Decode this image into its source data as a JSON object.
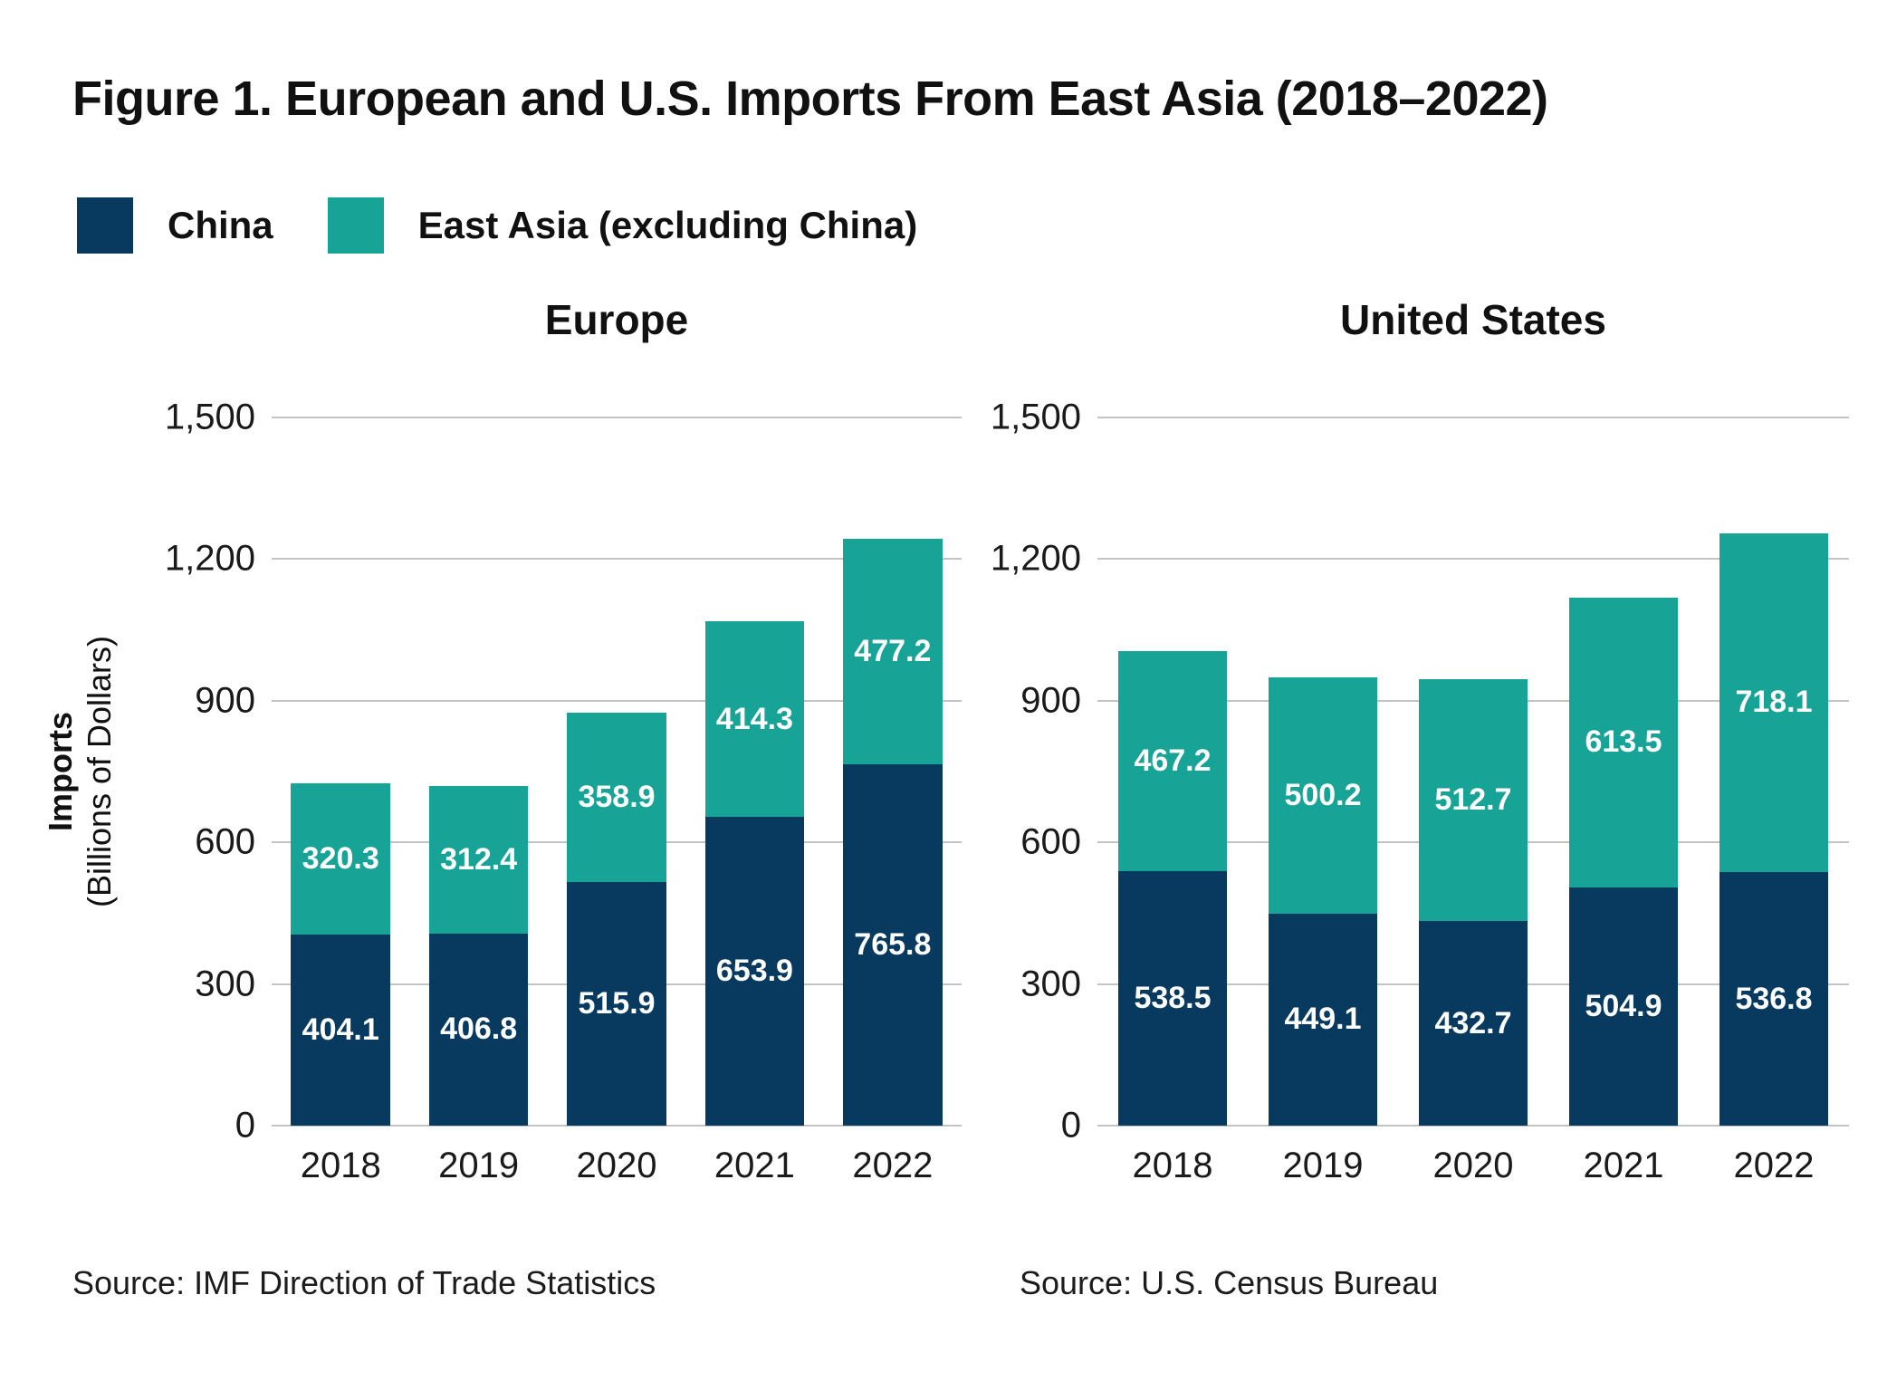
{
  "figure": {
    "title": "Figure 1. European and U.S. Imports From East Asia (2018–2022)"
  },
  "legend": {
    "items": [
      {
        "label": "China",
        "color": "#083a5f"
      },
      {
        "label": "East Asia (excluding China)",
        "color": "#17a396"
      }
    ]
  },
  "y_axis": {
    "title_bold": "Imports",
    "title_rest": "(Billions of Dollars)",
    "max": 1500,
    "ticks": [
      {
        "label": "1,500",
        "value": 1500
      },
      {
        "label": "1,200",
        "value": 1200
      },
      {
        "label": "900",
        "value": 900
      },
      {
        "label": "600",
        "value": 600
      },
      {
        "label": "300",
        "value": 300
      },
      {
        "label": "0",
        "value": 0
      }
    ]
  },
  "colors": {
    "china": "#083a5f",
    "east_asia_excl_china": "#17a396",
    "gridline": "#c3c3c3",
    "value_label": "#ffffff"
  },
  "chart_data": [
    {
      "type": "bar",
      "stacked": true,
      "title": "Europe",
      "categories": [
        "2018",
        "2019",
        "2020",
        "2021",
        "2022"
      ],
      "series": [
        {
          "name": "China",
          "color": "#083a5f",
          "values": [
            404.1,
            406.8,
            515.9,
            653.9,
            765.8
          ]
        },
        {
          "name": "East Asia (excluding China)",
          "color": "#17a396",
          "values": [
            320.3,
            312.4,
            358.9,
            414.3,
            477.2
          ]
        }
      ],
      "ylabel": "Imports (Billions of Dollars)",
      "ylim": [
        0,
        1500
      ],
      "grid": true,
      "source": "Source: IMF Direction of Trade Statistics"
    },
    {
      "type": "bar",
      "stacked": true,
      "title": "United States",
      "categories": [
        "2018",
        "2019",
        "2020",
        "2021",
        "2022"
      ],
      "series": [
        {
          "name": "China",
          "color": "#083a5f",
          "values": [
            538.5,
            449.1,
            432.7,
            504.9,
            536.8
          ]
        },
        {
          "name": "East Asia (excluding China)",
          "color": "#17a396",
          "values": [
            467.2,
            500.2,
            512.7,
            613.5,
            718.1
          ]
        }
      ],
      "ylabel": "Imports (Billions of Dollars)",
      "ylim": [
        0,
        1500
      ],
      "grid": true,
      "source": "Source: U.S. Census Bureau"
    }
  ]
}
